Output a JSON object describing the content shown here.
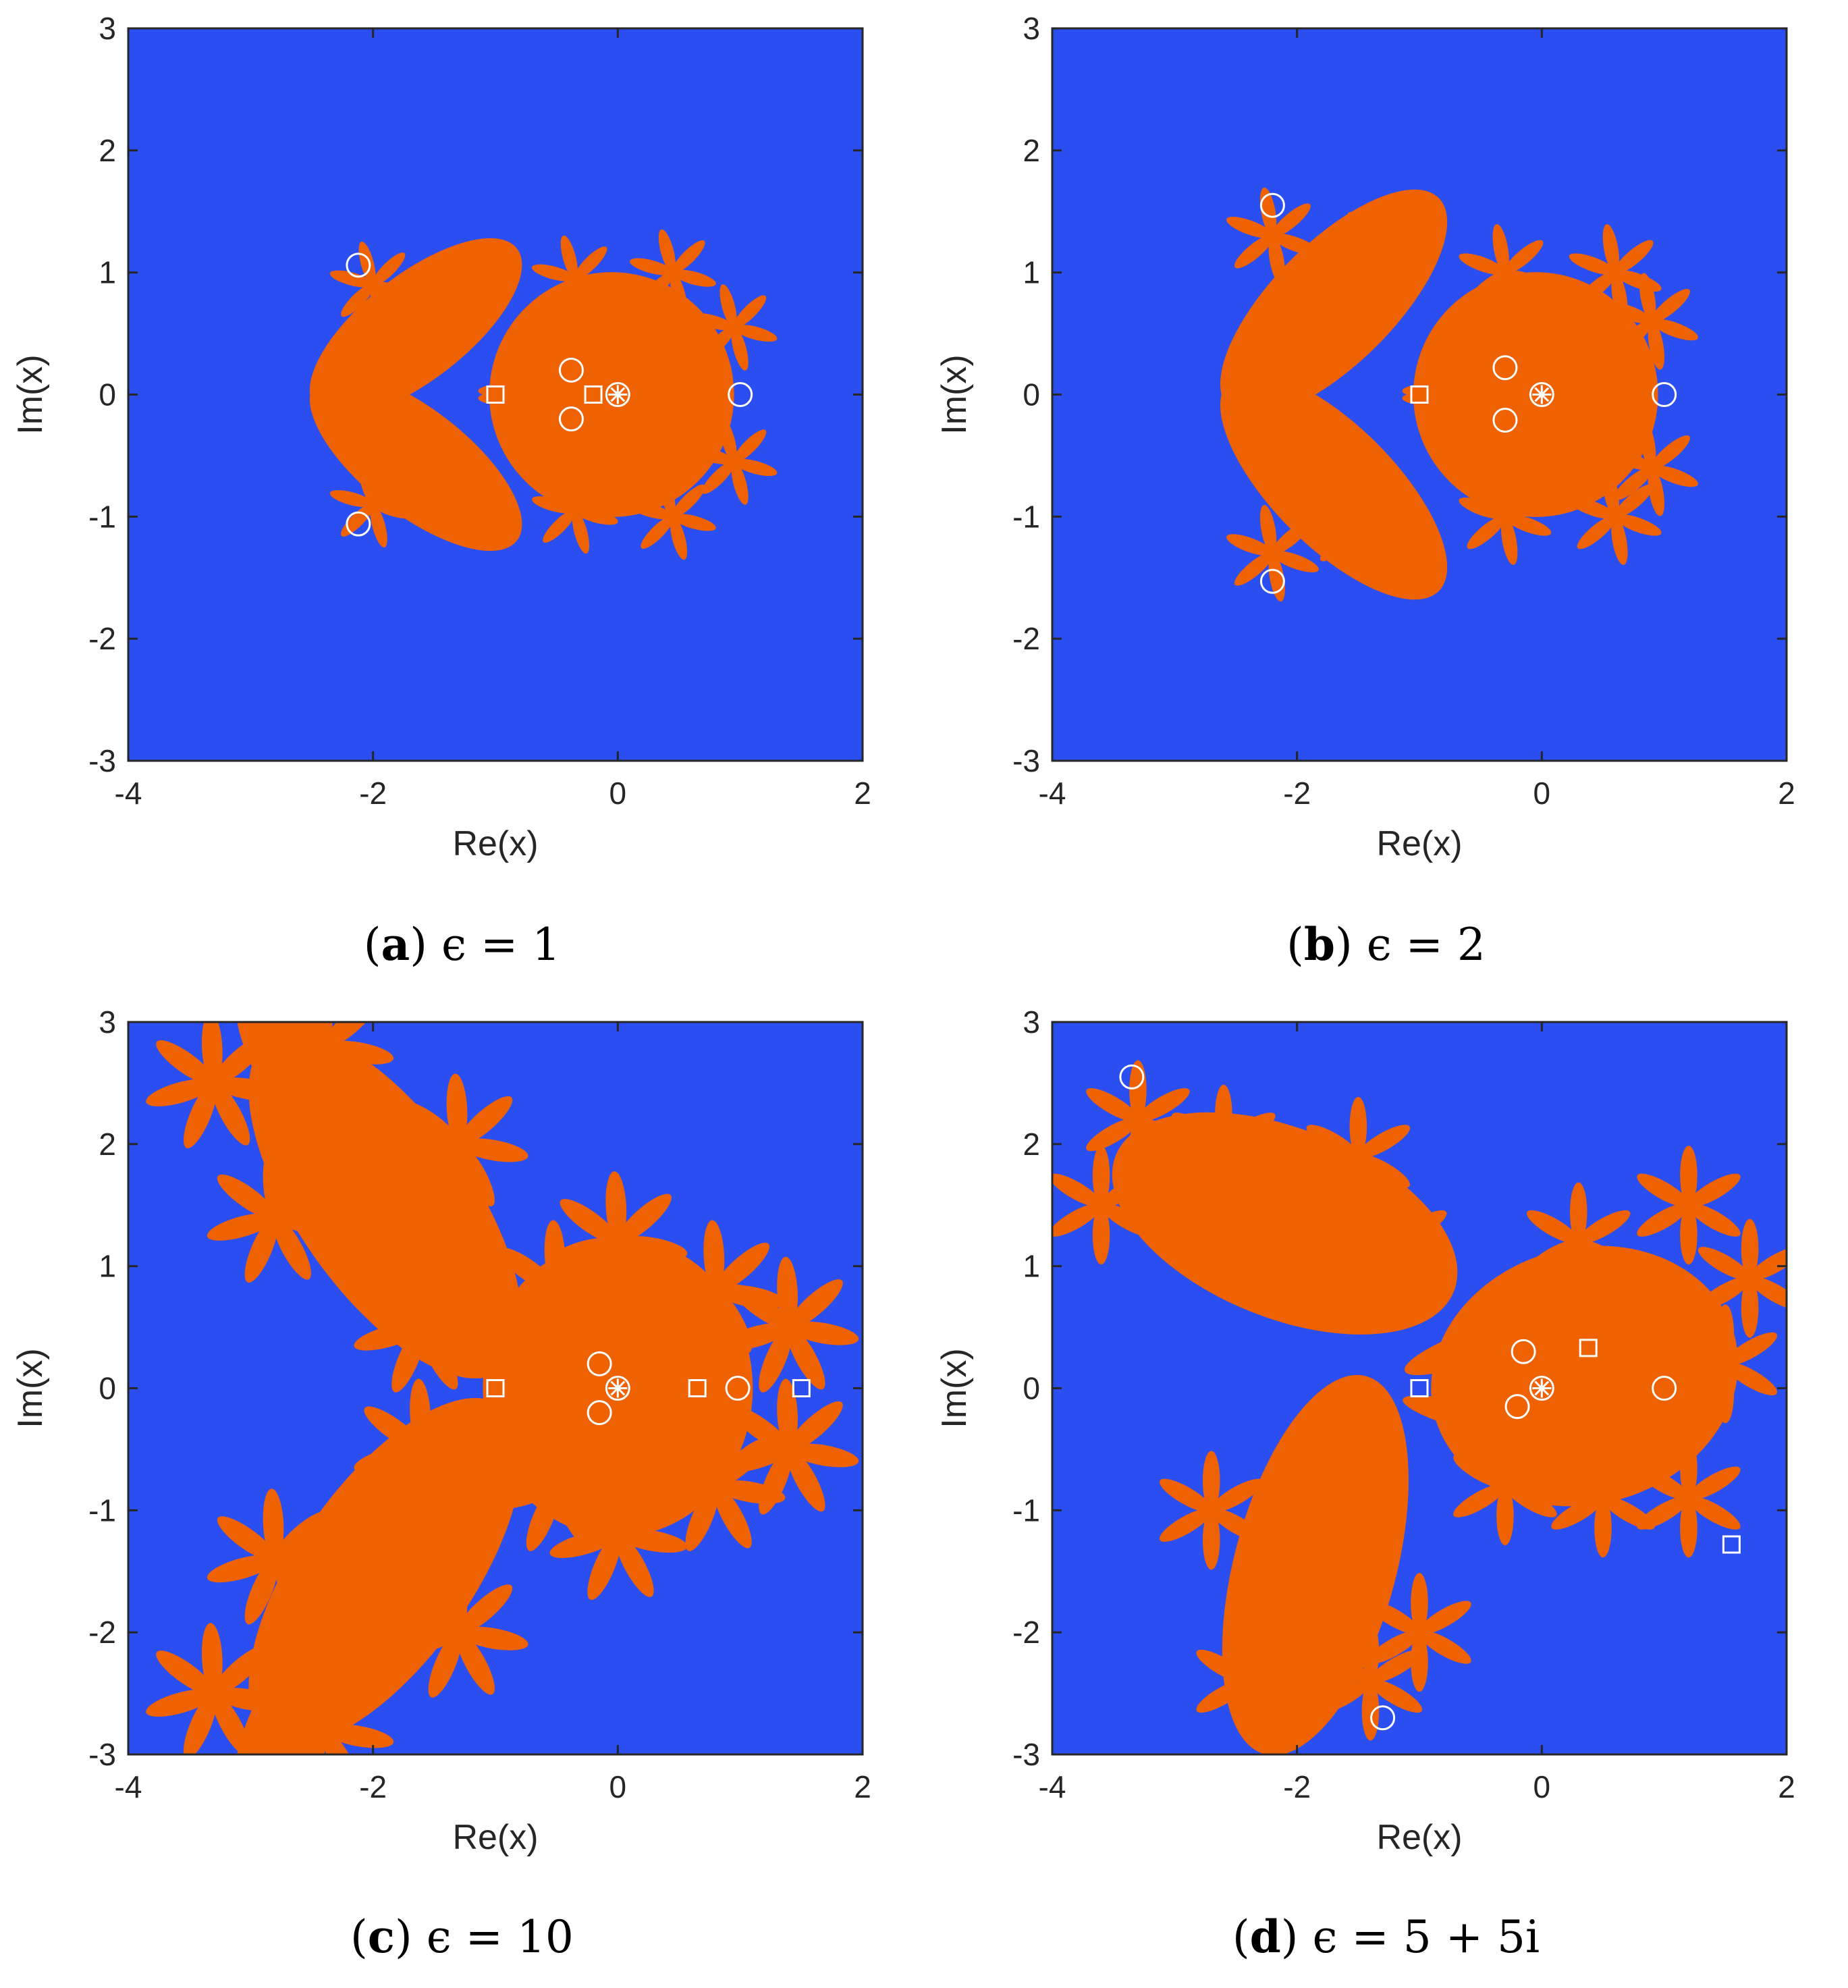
{
  "colors": {
    "background_basin": "#2b4ef1",
    "fractal_basin": "#ee6204",
    "marker": "#ffffff",
    "axis": "#262626"
  },
  "chart_data": [
    {
      "type": "scatter",
      "panel_label": "a",
      "caption": "ϵ = 1",
      "xlabel": "Re(x)",
      "ylabel": "Im(x)",
      "xlim": [
        -4,
        2
      ],
      "ylim": [
        -3,
        3
      ],
      "xticks": [
        -4,
        -2,
        0,
        2
      ],
      "yticks": [
        -3,
        -2,
        -1,
        0,
        1,
        2,
        3
      ],
      "circles": [
        [
          -2.12,
          1.06
        ],
        [
          -2.12,
          -1.06
        ],
        [
          -0.38,
          0.2
        ],
        [
          -0.38,
          -0.2
        ],
        [
          0.0,
          0.0
        ],
        [
          1.0,
          0.0
        ]
      ],
      "squares": [
        [
          -1.0,
          0.0
        ],
        [
          -0.2,
          0.0
        ]
      ],
      "stars": [
        [
          0.0,
          0.0
        ]
      ]
    },
    {
      "type": "scatter",
      "panel_label": "b",
      "caption": "ϵ = 2",
      "xlabel": "Re(x)",
      "ylabel": "Im(x)",
      "xlim": [
        -4,
        2
      ],
      "ylim": [
        -3,
        3
      ],
      "xticks": [
        -4,
        -2,
        0,
        2
      ],
      "yticks": [
        -3,
        -2,
        -1,
        0,
        1,
        2,
        3
      ],
      "circles": [
        [
          -2.2,
          1.55
        ],
        [
          -2.2,
          -1.53
        ],
        [
          -0.3,
          0.22
        ],
        [
          -0.3,
          -0.21
        ],
        [
          0.0,
          0.0
        ],
        [
          1.0,
          0.0
        ]
      ],
      "squares": [
        [
          -1.0,
          0.0
        ]
      ],
      "stars": [
        [
          0.0,
          0.0
        ]
      ]
    },
    {
      "type": "scatter",
      "panel_label": "c",
      "caption": "ϵ = 10",
      "xlabel": "Re(x)",
      "ylabel": "Im(x)",
      "xlim": [
        -4,
        2
      ],
      "ylim": [
        -3,
        3
      ],
      "xticks": [
        -4,
        -2,
        0,
        2
      ],
      "yticks": [
        -3,
        -2,
        -1,
        0,
        1,
        2,
        3
      ],
      "circles": [
        [
          -0.15,
          0.2
        ],
        [
          -0.15,
          -0.2
        ],
        [
          0.0,
          0.0
        ],
        [
          0.98,
          0.0
        ]
      ],
      "squares": [
        [
          -1.0,
          0.0
        ],
        [
          0.65,
          0.0
        ],
        [
          1.5,
          0.0
        ]
      ],
      "stars": [
        [
          0.0,
          0.0
        ]
      ]
    },
    {
      "type": "scatter",
      "panel_label": "d",
      "caption": "ϵ = 5 + 5i",
      "xlabel": "Re(x)",
      "ylabel": "Im(x)",
      "xlim": [
        -4,
        2
      ],
      "ylim": [
        -3,
        3
      ],
      "xticks": [
        -4,
        -2,
        0,
        2
      ],
      "yticks": [
        -3,
        -2,
        -1,
        0,
        1,
        2,
        3
      ],
      "circles": [
        [
          -3.35,
          2.55
        ],
        [
          -1.3,
          -2.7
        ],
        [
          -0.15,
          0.3
        ],
        [
          -0.2,
          -0.15
        ],
        [
          0.0,
          0.0
        ],
        [
          1.0,
          0.0
        ]
      ],
      "squares": [
        [
          -1.0,
          0.0
        ],
        [
          0.38,
          0.33
        ],
        [
          1.55,
          -1.28
        ]
      ],
      "stars": [
        [
          0.0,
          0.0
        ]
      ]
    }
  ]
}
